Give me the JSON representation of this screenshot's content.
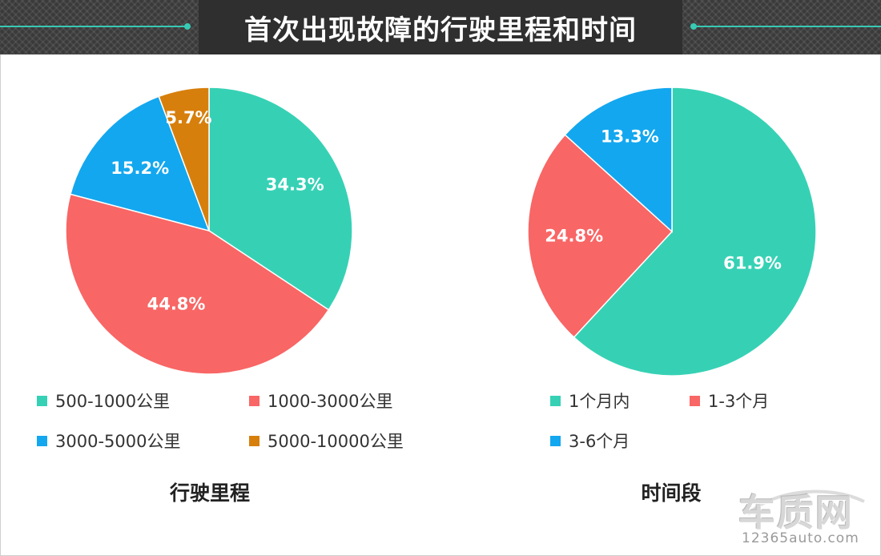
{
  "header": {
    "title": "首次出现故障的行驶里程和时间"
  },
  "colors": {
    "teal": "#36d1b5",
    "red": "#f86665",
    "blue": "#13a7ef",
    "orange": "#d77f0c"
  },
  "chart_data": [
    {
      "type": "pie",
      "title": "行驶里程",
      "categories": [
        "500-1000公里",
        "1000-3000公里",
        "3000-5000公里",
        "5000-10000公里"
      ],
      "values": [
        34.3,
        44.8,
        15.2,
        5.7
      ],
      "labels": [
        "34.3%",
        "44.8%",
        "15.2%",
        "5.7%"
      ],
      "colors": [
        "#36d1b5",
        "#f86665",
        "#13a7ef",
        "#d77f0c"
      ]
    },
    {
      "type": "pie",
      "title": "时间段",
      "categories": [
        "1个月内",
        "1-3个月",
        "3-6个月"
      ],
      "values": [
        61.9,
        24.8,
        13.3
      ],
      "labels": [
        "61.9%",
        "24.8%",
        "13.3%"
      ],
      "colors": [
        "#36d1b5",
        "#f86665",
        "#13a7ef"
      ]
    }
  ],
  "watermark": {
    "logo": "车质网",
    "url": "12365auto.com"
  }
}
